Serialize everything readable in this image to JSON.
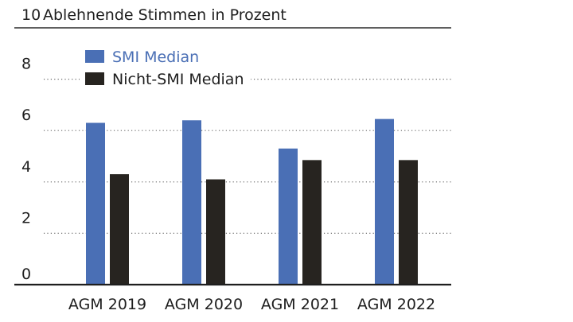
{
  "chart_data": {
    "type": "bar",
    "title": "Ablehnende Stimmen in Prozent",
    "xlabel": "",
    "ylabel": "",
    "categories": [
      "AGM 2019",
      "AGM 2020",
      "AGM 2021",
      "AGM 2022"
    ],
    "series": [
      {
        "name": "SMI Median",
        "values": [
          6.3,
          6.4,
          5.3,
          6.45
        ],
        "color": "#4a6fb5"
      },
      {
        "name": "Nicht-SMI Median",
        "values": [
          4.3,
          4.1,
          4.85,
          4.85
        ],
        "color": "#272420"
      }
    ],
    "yticks": [
      0,
      2,
      4,
      6,
      8,
      10
    ],
    "ylim": [
      0,
      10
    ],
    "grid": true,
    "legend": "top-left"
  }
}
